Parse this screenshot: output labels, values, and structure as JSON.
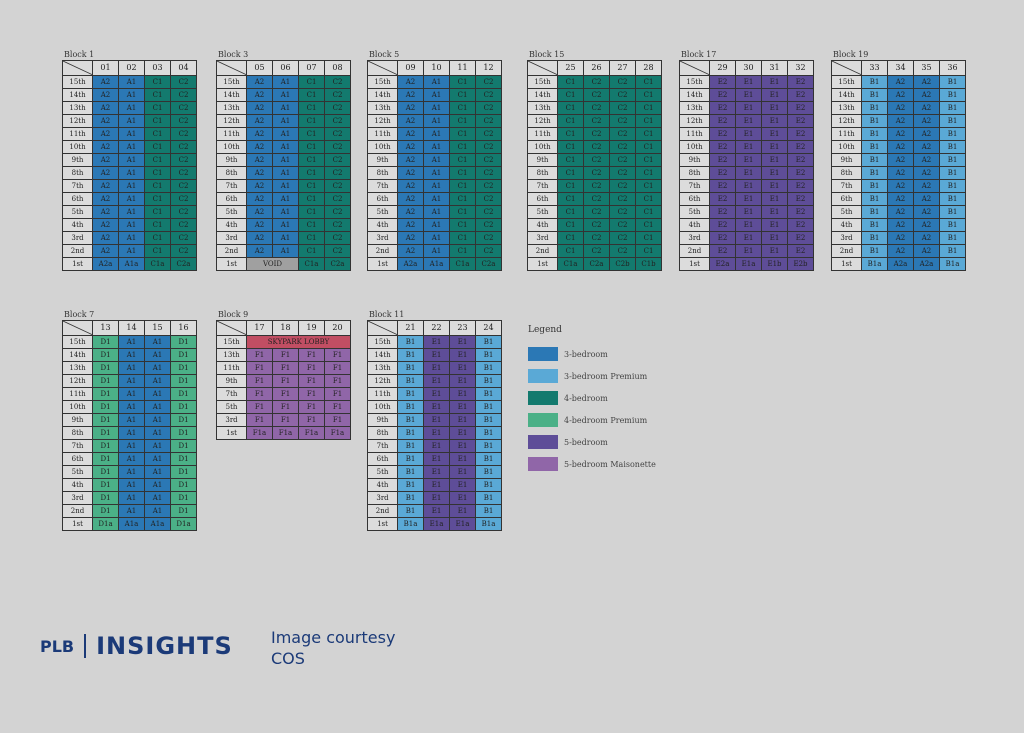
{
  "colors": {
    "c1": "#2b78b5",
    "c2": "#5aa9d6",
    "c3": "#137a6e",
    "c4": "#4bb087",
    "c5": "#5e4d98",
    "c6": "#9066a8",
    "void": "#a0a0a0",
    "lobby": "#c14e63"
  },
  "corner_label": "Unit Storey",
  "legend": {
    "title": "Legend",
    "items": [
      {
        "label": "3-bedroom",
        "color": "#2b78b5"
      },
      {
        "label": "3-bedroom Premium",
        "color": "#5aa9d6"
      },
      {
        "label": "4-bedroom",
        "color": "#137a6e"
      },
      {
        "label": "4-bedroom Premium",
        "color": "#4bb087"
      },
      {
        "label": "5-bedroom",
        "color": "#5e4d98"
      },
      {
        "label": "5-bedroom Maisonette",
        "color": "#9066a8"
      }
    ]
  },
  "branding": {
    "plb": "PLB",
    "insights": "INSIGHTS",
    "credit_line1": "Image courtesy",
    "credit_line2": "COS"
  },
  "blocks": [
    {
      "name": "Block 1",
      "units": [
        "01",
        "02",
        "03",
        "04"
      ],
      "storeys": [
        "15th",
        "14th",
        "13th",
        "12th",
        "11th",
        "10th",
        "9th",
        "8th",
        "7th",
        "6th",
        "5th",
        "4th",
        "3rd",
        "2nd",
        "1st"
      ],
      "rowTypes": [
        [
          "A2",
          "A1",
          "C1",
          "C2"
        ]
      ],
      "rowColors": [
        [
          "c1",
          "c1",
          "c3",
          "c3"
        ]
      ],
      "firstFloor": [
        [
          "A2a",
          "c1"
        ],
        [
          "A1a",
          "c1"
        ],
        [
          "C1a",
          "c3"
        ],
        [
          "C2a",
          "c3"
        ]
      ]
    },
    {
      "name": "Block 3",
      "units": [
        "05",
        "06",
        "07",
        "08"
      ],
      "storeys": [
        "15th",
        "14th",
        "13th",
        "12th",
        "11th",
        "10th",
        "9th",
        "8th",
        "7th",
        "6th",
        "5th",
        "4th",
        "3rd",
        "2nd",
        "1st"
      ],
      "rowTypes": [
        [
          "A2",
          "A1",
          "C1",
          "C2"
        ]
      ],
      "rowColors": [
        [
          "c1",
          "c1",
          "c3",
          "c3"
        ]
      ],
      "firstFloor": [
        [
          "VOID",
          "c7",
          2
        ],
        [
          "C1a",
          "c3"
        ],
        [
          "C2a",
          "c3"
        ]
      ]
    },
    {
      "name": "Block 5",
      "units": [
        "09",
        "10",
        "11",
        "12"
      ],
      "storeys": [
        "15th",
        "14th",
        "13th",
        "12th",
        "11th",
        "10th",
        "9th",
        "8th",
        "7th",
        "6th",
        "5th",
        "4th",
        "3rd",
        "2nd",
        "1st"
      ],
      "rowTypes": [
        [
          "A2",
          "A1",
          "C1",
          "C2"
        ]
      ],
      "rowColors": [
        [
          "c1",
          "c1",
          "c3",
          "c3"
        ]
      ],
      "firstFloor": [
        [
          "A2a",
          "c1"
        ],
        [
          "A1a",
          "c1"
        ],
        [
          "C1a",
          "c3"
        ],
        [
          "C2a",
          "c3"
        ]
      ]
    },
    {
      "name": "Block 15",
      "units": [
        "25",
        "26",
        "27",
        "28"
      ],
      "storeys": [
        "15th",
        "14th",
        "13th",
        "12th",
        "11th",
        "10th",
        "9th",
        "8th",
        "7th",
        "6th",
        "5th",
        "4th",
        "3rd",
        "2nd",
        "1st"
      ],
      "rowTypes": [
        [
          "C1",
          "C2",
          "C2",
          "C1"
        ]
      ],
      "rowColors": [
        [
          "c3",
          "c3",
          "c3",
          "c3"
        ]
      ],
      "firstFloor": [
        [
          "C1a",
          "c3"
        ],
        [
          "C2a",
          "c3"
        ],
        [
          "C2b",
          "c3"
        ],
        [
          "C1b",
          "c3"
        ]
      ]
    },
    {
      "name": "Block 17",
      "units": [
        "29",
        "30",
        "31",
        "32"
      ],
      "storeys": [
        "15th",
        "14th",
        "13th",
        "12th",
        "11th",
        "10th",
        "9th",
        "8th",
        "7th",
        "6th",
        "5th",
        "4th",
        "3rd",
        "2nd",
        "1st"
      ],
      "rowTypes": [
        [
          "E2",
          "E1",
          "E1",
          "E2"
        ]
      ],
      "rowColors": [
        [
          "c5",
          "c5",
          "c5",
          "c5"
        ]
      ],
      "firstFloor": [
        [
          "E2a",
          "c5"
        ],
        [
          "E1a",
          "c5"
        ],
        [
          "E1b",
          "c5"
        ],
        [
          "E2b",
          "c5"
        ]
      ]
    },
    {
      "name": "Block 19",
      "units": [
        "33",
        "34",
        "35",
        "36"
      ],
      "storeys": [
        "15th",
        "14th",
        "13th",
        "12th",
        "11th",
        "10th",
        "9th",
        "8th",
        "7th",
        "6th",
        "5th",
        "4th",
        "3rd",
        "2nd",
        "1st"
      ],
      "rowTypes": [
        [
          "B1",
          "A2",
          "A2",
          "B1"
        ]
      ],
      "rowColors": [
        [
          "c2",
          "c1",
          "c1",
          "c2"
        ]
      ],
      "firstFloor": [
        [
          "B1a",
          "c2"
        ],
        [
          "A2a",
          "c1"
        ],
        [
          "A2a",
          "c1"
        ],
        [
          "B1a",
          "c2"
        ]
      ]
    },
    {
      "name": "Block 7",
      "units": [
        "13",
        "14",
        "15",
        "16"
      ],
      "storeys": [
        "15th",
        "14th",
        "13th",
        "12th",
        "11th",
        "10th",
        "9th",
        "8th",
        "7th",
        "6th",
        "5th",
        "4th",
        "3rd",
        "2nd",
        "1st"
      ],
      "rowTypes": [
        [
          "D1",
          "A1",
          "A1",
          "D1"
        ]
      ],
      "rowColors": [
        [
          "c4",
          "c1",
          "c1",
          "c4"
        ]
      ],
      "firstFloor": [
        [
          "D1a",
          "c4"
        ],
        [
          "A1a",
          "c1"
        ],
        [
          "A1a",
          "c1"
        ],
        [
          "D1a",
          "c4"
        ]
      ]
    },
    {
      "name": "Block 9",
      "units": [
        "17",
        "18",
        "19",
        "20"
      ],
      "lobby": "SKYPARK LOBBY",
      "maisonetteStoreys": [
        "13th",
        "11th",
        "9th",
        "7th",
        "5th",
        "3rd"
      ],
      "maisonetteTypes": [
        "F1",
        "F1",
        "F1",
        "F1"
      ],
      "topStorey": "15th",
      "firstStorey": "1st",
      "firstFloor": [
        [
          "F1a",
          "c6"
        ],
        [
          "F1a",
          "c6"
        ],
        [
          "F1a",
          "c6"
        ],
        [
          "F1a",
          "c6"
        ]
      ]
    },
    {
      "name": "Block 11",
      "units": [
        "21",
        "22",
        "23",
        "24"
      ],
      "storeys": [
        "15th",
        "14th",
        "13th",
        "12th",
        "11th",
        "10th",
        "9th",
        "8th",
        "7th",
        "6th",
        "5th",
        "4th",
        "3rd",
        "2nd",
        "1st"
      ],
      "rowTypes": [
        [
          "B1",
          "E1",
          "E1",
          "B1"
        ]
      ],
      "rowColors": [
        [
          "c2",
          "c5",
          "c5",
          "c2"
        ]
      ],
      "firstFloor": [
        [
          "B1a",
          "c2"
        ],
        [
          "E1a",
          "c5"
        ],
        [
          "E1a",
          "c5"
        ],
        [
          "B1a",
          "c2"
        ]
      ]
    }
  ]
}
